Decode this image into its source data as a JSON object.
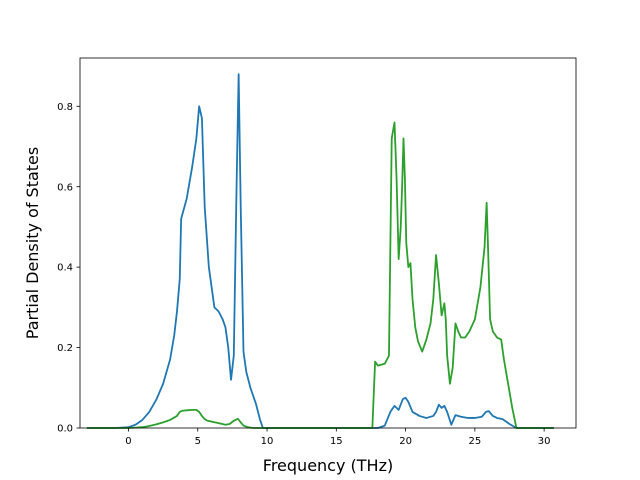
{
  "chart_data": {
    "type": "line",
    "title": "",
    "xlabel": "Frequency (THz)",
    "ylabel": "Partial Density of States",
    "xlim": [
      -3.5,
      32.3
    ],
    "ylim": [
      0,
      0.92
    ],
    "xticks": [
      0,
      5,
      10,
      15,
      20,
      25,
      30
    ],
    "yticks": [
      0.0,
      0.2,
      0.4,
      0.6,
      0.8
    ],
    "ytick_labels": [
      "0.0",
      "0.2",
      "0.4",
      "0.6",
      "0.8"
    ],
    "grid": false,
    "legend": "none",
    "series": [
      {
        "color": "#1f77b4",
        "x": [
          -3.0,
          -1.0,
          0.0,
          0.5,
          1.0,
          1.5,
          2.0,
          2.5,
          3.0,
          3.3,
          3.5,
          3.7,
          3.8,
          4.2,
          4.6,
          4.9,
          5.1,
          5.3,
          5.5,
          5.8,
          6.2,
          6.5,
          6.8,
          7.0,
          7.2,
          7.4,
          7.6,
          7.8,
          7.95,
          8.1,
          8.3,
          8.5,
          8.8,
          9.2,
          9.5,
          9.7,
          10.0,
          15.0,
          18.0,
          18.5,
          18.9,
          19.2,
          19.5,
          19.8,
          20.0,
          20.2,
          20.5,
          21.0,
          21.5,
          22.0,
          22.2,
          22.4,
          22.6,
          22.8,
          23.0,
          23.3,
          23.6,
          24.0,
          24.5,
          25.0,
          25.5,
          25.8,
          26.0,
          26.3,
          26.6,
          27.0,
          27.5,
          28.0,
          30.7
        ],
        "y": [
          0.0,
          0.0,
          0.002,
          0.008,
          0.02,
          0.04,
          0.07,
          0.11,
          0.17,
          0.23,
          0.29,
          0.37,
          0.52,
          0.57,
          0.65,
          0.72,
          0.8,
          0.77,
          0.55,
          0.4,
          0.3,
          0.29,
          0.27,
          0.25,
          0.2,
          0.12,
          0.18,
          0.6,
          0.88,
          0.55,
          0.19,
          0.14,
          0.1,
          0.06,
          0.02,
          0.0,
          0.0,
          0.0,
          0.0,
          0.006,
          0.04,
          0.055,
          0.045,
          0.072,
          0.075,
          0.065,
          0.04,
          0.03,
          0.025,
          0.03,
          0.04,
          0.058,
          0.05,
          0.055,
          0.04,
          0.008,
          0.032,
          0.028,
          0.025,
          0.025,
          0.028,
          0.04,
          0.042,
          0.03,
          0.025,
          0.022,
          0.01,
          0.0,
          0.0
        ]
      },
      {
        "color": "#2ca02c",
        "x": [
          -3.0,
          -1.0,
          0.0,
          0.5,
          1.0,
          1.5,
          2.0,
          2.5,
          3.0,
          3.5,
          3.7,
          3.9,
          4.2,
          4.6,
          4.9,
          5.1,
          5.3,
          5.5,
          5.7,
          6.0,
          6.5,
          7.0,
          7.3,
          7.6,
          7.9,
          8.1,
          8.3,
          8.6,
          9.0,
          9.5,
          10.0,
          15.0,
          17.6,
          17.8,
          18.0,
          18.5,
          18.8,
          19.0,
          19.1,
          19.2,
          19.35,
          19.5,
          19.65,
          19.75,
          19.85,
          19.95,
          20.05,
          20.2,
          20.35,
          20.5,
          20.7,
          20.9,
          21.2,
          21.5,
          21.8,
          22.0,
          22.2,
          22.4,
          22.6,
          22.8,
          22.9,
          23.0,
          23.2,
          23.4,
          23.6,
          23.8,
          24.0,
          24.3,
          24.6,
          25.0,
          25.4,
          25.7,
          25.85,
          25.95,
          26.1,
          26.3,
          26.6,
          26.9,
          27.1,
          27.4,
          27.7,
          28.0,
          30.7
        ],
        "y": [
          0.0,
          0.0,
          0.0,
          0.001,
          0.002,
          0.005,
          0.009,
          0.014,
          0.02,
          0.03,
          0.04,
          0.043,
          0.044,
          0.045,
          0.045,
          0.04,
          0.03,
          0.022,
          0.018,
          0.016,
          0.012,
          0.008,
          0.01,
          0.018,
          0.023,
          0.014,
          0.006,
          0.002,
          0.0,
          0.0,
          0.0,
          0.0,
          0.0,
          0.165,
          0.155,
          0.16,
          0.18,
          0.72,
          0.74,
          0.76,
          0.62,
          0.42,
          0.5,
          0.6,
          0.72,
          0.62,
          0.46,
          0.4,
          0.41,
          0.32,
          0.25,
          0.215,
          0.19,
          0.22,
          0.26,
          0.32,
          0.43,
          0.36,
          0.28,
          0.31,
          0.27,
          0.18,
          0.11,
          0.15,
          0.26,
          0.24,
          0.225,
          0.225,
          0.24,
          0.27,
          0.35,
          0.45,
          0.56,
          0.45,
          0.27,
          0.24,
          0.225,
          0.22,
          0.17,
          0.11,
          0.05,
          0.0,
          0.0
        ]
      }
    ]
  }
}
